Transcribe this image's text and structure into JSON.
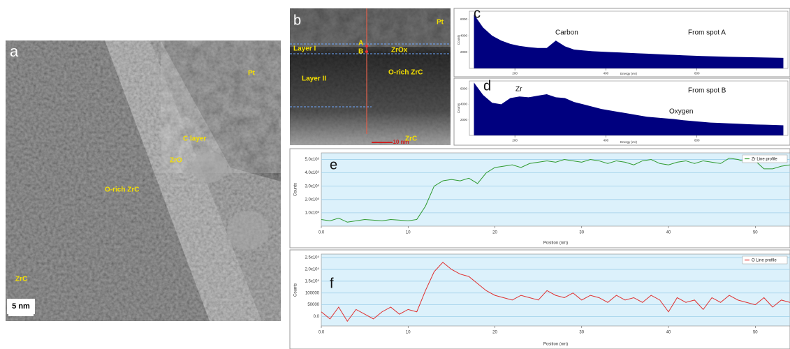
{
  "images": {
    "a": {
      "label": "a",
      "texts": [
        "Pt",
        "C layer",
        "ZrO",
        "O-rich ZrC",
        "ZrC"
      ],
      "scale_bar": "5 nm"
    },
    "b": {
      "label": "b",
      "texts": [
        "Pt",
        "Layer I",
        "A",
        "B",
        "ZrOx",
        "Layer II",
        "O-rich ZrC",
        "ZrC"
      ],
      "scale_bar": "10 nm"
    }
  },
  "chart_data": [
    {
      "type": "area",
      "label": "c",
      "annotations": [
        "Carbon",
        "From spot A"
      ],
      "x_label": "Energy (eV)",
      "y_label": "Counts",
      "x": [
        110,
        130,
        150,
        170,
        190,
        210,
        230,
        250,
        270,
        290,
        310,
        330,
        350,
        370,
        390,
        410,
        430,
        450,
        470,
        490,
        510,
        530,
        550,
        570,
        590,
        610,
        630,
        650,
        670,
        690,
        710,
        730,
        750,
        770,
        790
      ],
      "series": [
        {
          "color": "#00007f",
          "values": [
            6600,
            5000,
            4000,
            3400,
            3000,
            2750,
            2600,
            2500,
            2500,
            3400,
            2700,
            2300,
            2200,
            2100,
            2050,
            2000,
            1950,
            1900,
            1850,
            1800,
            1750,
            1700,
            1650,
            1600,
            1560,
            1520,
            1480,
            1450,
            1420,
            1400,
            1380,
            1350,
            1330,
            1310,
            1290
          ]
        }
      ],
      "xlim": [
        100,
        800
      ],
      "xticks": [
        200,
        400,
        600
      ],
      "ylim": [
        0,
        7000
      ],
      "yticks": [
        2000,
        4000,
        6000
      ]
    },
    {
      "type": "area",
      "label": "d",
      "annotations": [
        "Zr",
        "From spot B",
        "Oxygen"
      ],
      "x_label": "Energy (eV)",
      "y_label": "Counts",
      "x": [
        110,
        130,
        150,
        170,
        190,
        210,
        230,
        250,
        270,
        290,
        310,
        330,
        350,
        370,
        390,
        410,
        430,
        450,
        470,
        490,
        510,
        530,
        550,
        570,
        590,
        610,
        630,
        650,
        670,
        690,
        710,
        730,
        750,
        770,
        790
      ],
      "series": [
        {
          "color": "#00007f",
          "values": [
            6800,
            5200,
            4200,
            4000,
            4800,
            5000,
            4900,
            5100,
            5300,
            4900,
            4800,
            4300,
            4000,
            3700,
            3400,
            3200,
            3000,
            2800,
            2600,
            2400,
            2300,
            2200,
            2100,
            1950,
            1850,
            1750,
            1650,
            1600,
            1550,
            1500,
            1450,
            1400,
            1380,
            1350,
            1300
          ]
        }
      ],
      "xlim": [
        100,
        800
      ],
      "xticks": [
        200,
        400,
        600
      ],
      "ylim": [
        0,
        7000
      ],
      "yticks": [
        2000,
        4000,
        6000
      ]
    },
    {
      "type": "line",
      "label": "e",
      "x_label": "Position (nm)",
      "y_label": "Counts",
      "grid": true,
      "legend": "top-right",
      "x": [
        0,
        1,
        2,
        3,
        4,
        5,
        6,
        7,
        8,
        9,
        10,
        11,
        12,
        13,
        14,
        15,
        16,
        17,
        18,
        19,
        20,
        21,
        22,
        23,
        24,
        25,
        26,
        27,
        28,
        29,
        30,
        31,
        32,
        33,
        34,
        35,
        36,
        37,
        38,
        39,
        40,
        41,
        42,
        43,
        44,
        45,
        46,
        47,
        48,
        49,
        50,
        51,
        52,
        53,
        54
      ],
      "series": [
        {
          "name": "Zr Line profile",
          "color": "#2e9a2e",
          "values": [
            500000,
            400000,
            600000,
            300000,
            400000,
            500000,
            450000,
            400000,
            500000,
            450000,
            400000,
            500000,
            1500000,
            3000000,
            3400000,
            3500000,
            3400000,
            3600000,
            3200000,
            4000000,
            4400000,
            4500000,
            4600000,
            4400000,
            4700000,
            4800000,
            4900000,
            4800000,
            5000000,
            4900000,
            4800000,
            5000000,
            4900000,
            4700000,
            4900000,
            4800000,
            4600000,
            4900000,
            5000000,
            4700000,
            4600000,
            4800000,
            4900000,
            4700000,
            4900000,
            4800000,
            4700000,
            5100000,
            5000000,
            4800000,
            4900000,
            4300000,
            4300000,
            4500000,
            4600000
          ]
        }
      ],
      "xlim": [
        0,
        54
      ],
      "xticks": [
        {
          "value": 0,
          "label": "0.0"
        },
        10,
        20,
        30,
        40,
        50
      ],
      "ylim": [
        0,
        5500000
      ],
      "yticks": [
        {
          "value": 1000000,
          "label": "1.0x10⁶"
        },
        {
          "value": 2000000,
          "label": "2.0x10⁶"
        },
        {
          "value": 3000000,
          "label": "3.0x10⁶"
        },
        {
          "value": 4000000,
          "label": "4.0x10⁶"
        },
        {
          "value": 5000000,
          "label": "5.0x10⁶"
        }
      ]
    },
    {
      "type": "line",
      "label": "f",
      "x_label": "Position (nm)",
      "y_label": "Counts",
      "grid": true,
      "legend": "top-right",
      "x": [
        0,
        1,
        2,
        3,
        4,
        5,
        6,
        7,
        8,
        9,
        10,
        11,
        12,
        13,
        14,
        15,
        16,
        17,
        18,
        19,
        20,
        21,
        22,
        23,
        24,
        25,
        26,
        27,
        28,
        29,
        30,
        31,
        32,
        33,
        34,
        35,
        36,
        37,
        38,
        39,
        40,
        41,
        42,
        43,
        44,
        45,
        46,
        47,
        48,
        49,
        50,
        51,
        52,
        53,
        54
      ],
      "series": [
        {
          "name": "O Line profile",
          "color": "#e03030",
          "values": [
            20000,
            -10000,
            40000,
            -20000,
            30000,
            10000,
            -10000,
            20000,
            40000,
            10000,
            30000,
            20000,
            110000,
            190000,
            230000,
            200000,
            180000,
            170000,
            140000,
            110000,
            90000,
            80000,
            70000,
            90000,
            80000,
            70000,
            110000,
            90000,
            80000,
            100000,
            70000,
            90000,
            80000,
            60000,
            90000,
            70000,
            80000,
            60000,
            90000,
            70000,
            20000,
            80000,
            60000,
            70000,
            30000,
            80000,
            60000,
            90000,
            70000,
            60000,
            50000,
            80000,
            40000,
            70000,
            60000
          ]
        }
      ],
      "xlim": [
        0,
        54
      ],
      "xticks": [
        {
          "value": 0,
          "label": "0.0"
        },
        10,
        20,
        30,
        40,
        50
      ],
      "ylim": [
        -40000,
        265000
      ],
      "yticks": [
        {
          "value": 0,
          "label": "0.0"
        },
        50000,
        100000,
        {
          "value": 150000,
          "label": "1.5x10⁵"
        },
        {
          "value": 200000,
          "label": "2.0x10⁵"
        },
        {
          "value": 250000,
          "label": "2.5x10⁵"
        }
      ]
    }
  ]
}
